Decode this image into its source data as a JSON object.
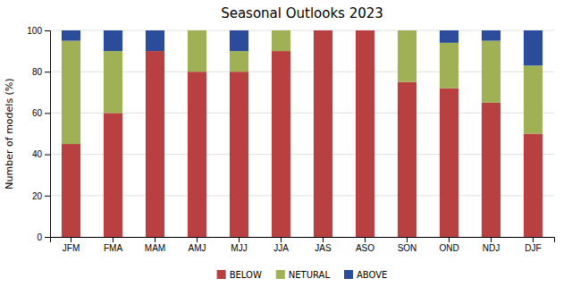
{
  "chart_data": {
    "type": "bar",
    "stacked": true,
    "title": "Seasonal Outlooks 2023",
    "ylabel": "Number of models (%)",
    "categories": [
      "JFM",
      "FMA",
      "MAM",
      "AMJ",
      "MJJ",
      "JJA",
      "JAS",
      "ASO",
      "SON",
      "OND",
      "NDJ",
      "DJF"
    ],
    "series": [
      {
        "name": "BELOW",
        "color": "#b94040",
        "values": [
          45,
          60,
          90,
          80,
          80,
          90,
          100,
          100,
          75,
          72,
          65,
          50
        ]
      },
      {
        "name": "NETURAL",
        "color": "#a0b055",
        "values": [
          50,
          30,
          0,
          20,
          10,
          10,
          0,
          0,
          25,
          22,
          30,
          33
        ]
      },
      {
        "name": "ABOVE",
        "color": "#2b4b9b",
        "values": [
          5,
          10,
          10,
          0,
          10,
          0,
          0,
          0,
          0,
          6,
          5,
          17
        ]
      }
    ],
    "ylim": [
      0,
      100
    ],
    "yticks": [
      0,
      20,
      40,
      60,
      80,
      100
    ],
    "grid": true,
    "legend": "bottom"
  }
}
